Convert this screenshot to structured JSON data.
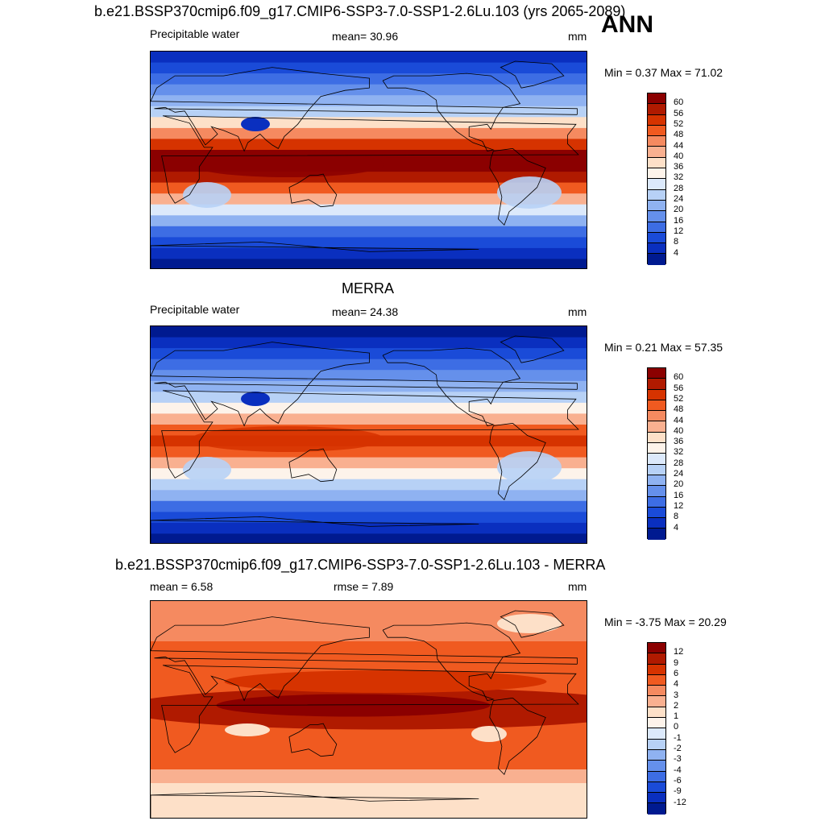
{
  "header": {
    "case_title": "b.e21.BSSP370cmip6.f09_g17.CMIP6-SSP3-7.0-SSP1-2.6Lu.103 (yrs 2065-2089)",
    "season": "ANN"
  },
  "panels": [
    {
      "title": "",
      "left": "Precipitable water",
      "center": "mean=  30.96",
      "units": "mm",
      "minmax": "Min =   0.37 Max =  71.02",
      "kind": "model"
    },
    {
      "title": "MERRA",
      "left": "Precipitable water",
      "center": "mean=  24.38",
      "units": "mm",
      "minmax": "Min =   0.21 Max =  57.35",
      "kind": "obs"
    },
    {
      "title": "b.e21.BSSP370cmip6.f09_g17.CMIP6-SSP3-7.0-SSP1-2.6Lu.103 - MERRA",
      "left": "mean =   6.58",
      "center": "rmse =   7.89",
      "units": "mm",
      "minmax": "Min =  -3.75 Max =  20.29",
      "kind": "diff"
    }
  ],
  "legend_abs": {
    "labels": [
      "60",
      "56",
      "52",
      "48",
      "44",
      "40",
      "36",
      "32",
      "28",
      "24",
      "20",
      "16",
      "12",
      "8",
      "4"
    ],
    "colors": [
      "#8b0000",
      "#b01a00",
      "#d63300",
      "#f05a20",
      "#f58a60",
      "#f9b090",
      "#fde0c8",
      "#fdf3ea",
      "#dce9fb",
      "#b7d1f6",
      "#8fb2f1",
      "#6590eb",
      "#3d6de4",
      "#1a4bd8",
      "#0a2fbf",
      "#001a90"
    ]
  },
  "legend_diff": {
    "labels": [
      "12",
      "9",
      "6",
      "4",
      "3",
      "2",
      "1",
      "0",
      "-1",
      "-2",
      "-3",
      "-4",
      "-6",
      "-9",
      "-12"
    ],
    "colors": [
      "#8b0000",
      "#b01a00",
      "#d63300",
      "#f05a20",
      "#f58a60",
      "#f9b090",
      "#fde0c8",
      "#fdf3ea",
      "#dce9fb",
      "#b7d1f6",
      "#8fb2f1",
      "#6590eb",
      "#3d6de4",
      "#1a4bd8",
      "#0a2fbf",
      "#001a90"
    ]
  }
}
